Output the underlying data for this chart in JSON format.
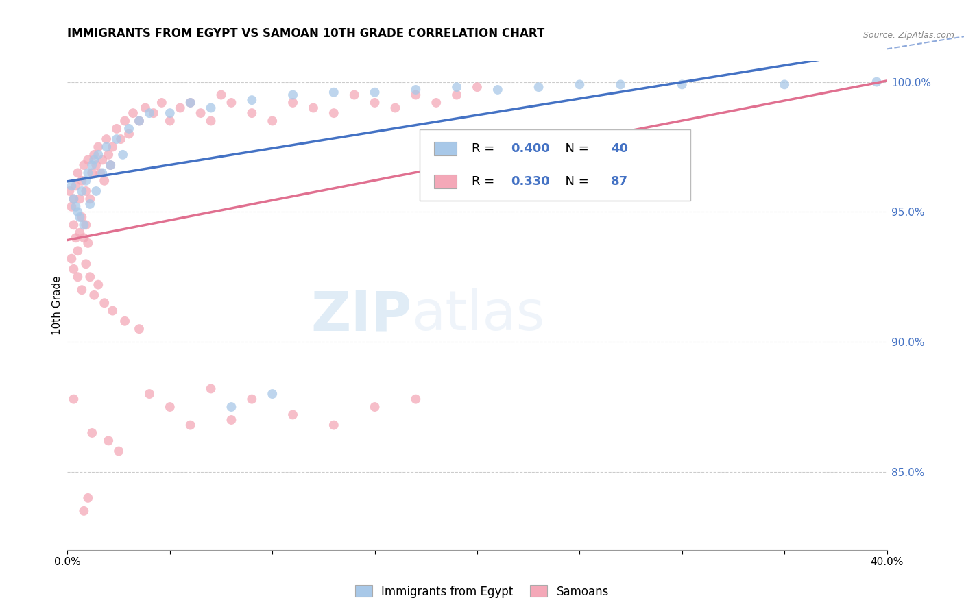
{
  "title": "IMMIGRANTS FROM EGYPT VS SAMOAN 10TH GRADE CORRELATION CHART",
  "source": "Source: ZipAtlas.com",
  "ylabel": "10th Grade",
  "watermark_zip": "ZIP",
  "watermark_atlas": "atlas",
  "xlim": [
    0.0,
    0.4
  ],
  "ylim": [
    0.82,
    1.008
  ],
  "yticks": [
    0.85,
    0.9,
    0.95,
    1.0
  ],
  "ytick_labels": [
    "85.0%",
    "90.0%",
    "95.0%",
    "100.0%"
  ],
  "xticks": [
    0.0,
    0.05,
    0.1,
    0.15,
    0.2,
    0.25,
    0.3,
    0.35,
    0.4
  ],
  "xtick_labels": [
    "0.0%",
    "",
    "",
    "",
    "",
    "",
    "",
    "",
    "40.0%"
  ],
  "blue_R": 0.4,
  "blue_N": 40,
  "pink_R": 0.33,
  "pink_N": 87,
  "blue_color": "#a8c8e8",
  "pink_color": "#f4a8b8",
  "blue_line_color": "#4472c4",
  "pink_line_color": "#e07090",
  "legend_label_blue": "Immigrants from Egypt",
  "legend_label_pink": "Samoans",
  "blue_x": [
    0.002,
    0.003,
    0.004,
    0.005,
    0.006,
    0.007,
    0.008,
    0.009,
    0.01,
    0.011,
    0.012,
    0.013,
    0.014,
    0.015,
    0.017,
    0.019,
    0.021,
    0.024,
    0.027,
    0.03,
    0.035,
    0.04,
    0.05,
    0.06,
    0.07,
    0.08,
    0.09,
    0.1,
    0.11,
    0.13,
    0.15,
    0.17,
    0.19,
    0.21,
    0.23,
    0.25,
    0.27,
    0.3,
    0.35,
    0.395
  ],
  "blue_y": [
    0.96,
    0.955,
    0.952,
    0.95,
    0.948,
    0.958,
    0.945,
    0.962,
    0.965,
    0.953,
    0.968,
    0.97,
    0.958,
    0.972,
    0.965,
    0.975,
    0.968,
    0.978,
    0.972,
    0.982,
    0.985,
    0.988,
    0.988,
    0.992,
    0.99,
    0.875,
    0.993,
    0.88,
    0.995,
    0.996,
    0.996,
    0.997,
    0.998,
    0.997,
    0.998,
    0.999,
    0.999,
    0.999,
    0.999,
    1.0
  ],
  "pink_x": [
    0.001,
    0.002,
    0.003,
    0.003,
    0.004,
    0.004,
    0.005,
    0.005,
    0.006,
    0.006,
    0.007,
    0.007,
    0.008,
    0.008,
    0.009,
    0.009,
    0.01,
    0.01,
    0.011,
    0.012,
    0.013,
    0.014,
    0.015,
    0.016,
    0.017,
    0.018,
    0.019,
    0.02,
    0.021,
    0.022,
    0.024,
    0.026,
    0.028,
    0.03,
    0.032,
    0.035,
    0.038,
    0.042,
    0.046,
    0.05,
    0.055,
    0.06,
    0.065,
    0.07,
    0.075,
    0.08,
    0.09,
    0.1,
    0.11,
    0.12,
    0.13,
    0.14,
    0.15,
    0.16,
    0.17,
    0.18,
    0.19,
    0.2,
    0.002,
    0.003,
    0.005,
    0.007,
    0.009,
    0.011,
    0.013,
    0.015,
    0.018,
    0.022,
    0.028,
    0.035,
    0.008,
    0.01,
    0.012,
    0.02,
    0.025,
    0.04,
    0.06,
    0.08,
    0.003,
    0.05,
    0.07,
    0.09,
    0.11,
    0.13,
    0.15,
    0.17
  ],
  "pink_y": [
    0.958,
    0.952,
    0.945,
    0.955,
    0.94,
    0.96,
    0.935,
    0.965,
    0.942,
    0.955,
    0.948,
    0.962,
    0.94,
    0.968,
    0.945,
    0.958,
    0.938,
    0.97,
    0.955,
    0.965,
    0.972,
    0.968,
    0.975,
    0.965,
    0.97,
    0.962,
    0.978,
    0.972,
    0.968,
    0.975,
    0.982,
    0.978,
    0.985,
    0.98,
    0.988,
    0.985,
    0.99,
    0.988,
    0.992,
    0.985,
    0.99,
    0.992,
    0.988,
    0.985,
    0.995,
    0.992,
    0.988,
    0.985,
    0.992,
    0.99,
    0.988,
    0.995,
    0.992,
    0.99,
    0.995,
    0.992,
    0.995,
    0.998,
    0.932,
    0.928,
    0.925,
    0.92,
    0.93,
    0.925,
    0.918,
    0.922,
    0.915,
    0.912,
    0.908,
    0.905,
    0.835,
    0.84,
    0.865,
    0.862,
    0.858,
    0.88,
    0.868,
    0.87,
    0.878,
    0.875,
    0.882,
    0.878,
    0.872,
    0.868,
    0.875,
    0.878
  ]
}
